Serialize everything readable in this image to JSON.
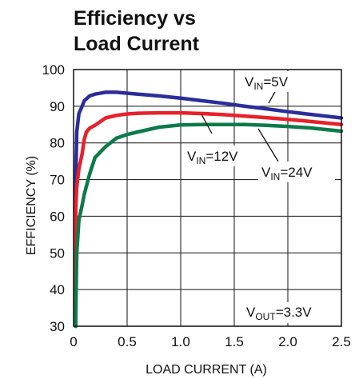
{
  "chart_data": {
    "type": "line",
    "title_lines": [
      "Efficiency vs",
      "Load Current"
    ],
    "xlabel": "LOAD CURRENT (A)",
    "ylabel": "EFFICIENCY (%)",
    "xlim": [
      0,
      2.5
    ],
    "ylim": [
      30,
      100
    ],
    "x_ticks": [
      "0",
      "0.5",
      "1.0",
      "1.5",
      "2.0",
      "2.5"
    ],
    "y_ticks": [
      "30",
      "40",
      "50",
      "60",
      "70",
      "80",
      "90",
      "100"
    ],
    "grid": true,
    "series": [
      {
        "color": "#2b2d9a",
        "x": [
          0.02,
          0.03,
          0.05,
          0.08,
          0.1,
          0.15,
          0.2,
          0.3,
          0.4,
          0.6,
          0.8,
          1.0,
          1.2,
          1.4,
          1.6,
          1.8,
          2.0,
          2.2,
          2.5
        ],
        "y": [
          70,
          83,
          88,
          90,
          91.5,
          92.8,
          93.3,
          93.8,
          93.8,
          93.3,
          92.8,
          92.2,
          91.5,
          90.8,
          90,
          89.3,
          88.5,
          87.8,
          86.8
        ]
      },
      {
        "color": "#e8202a",
        "x": [
          0.02,
          0.03,
          0.05,
          0.08,
          0.1,
          0.12,
          0.15,
          0.2,
          0.3,
          0.4,
          0.5,
          0.6,
          0.8,
          1.0,
          1.2,
          1.4,
          1.6,
          1.8,
          2.0,
          2.2,
          2.5
        ],
        "y": [
          62,
          68,
          73,
          77,
          81,
          83,
          84,
          84.8,
          86.8,
          87.5,
          87.9,
          88.1,
          88.2,
          88.2,
          88,
          87.7,
          87.3,
          86.9,
          86.4,
          85.9,
          85
        ]
      },
      {
        "color": "#0d7a4a",
        "x": [
          0.02,
          0.03,
          0.05,
          0.08,
          0.1,
          0.15,
          0.2,
          0.3,
          0.4,
          0.5,
          0.6,
          0.8,
          1.0,
          1.2,
          1.4,
          1.6,
          1.8,
          2.0,
          2.2,
          2.5
        ],
        "y": [
          32,
          50,
          59,
          63,
          66,
          71.5,
          76,
          79,
          81.3,
          82.3,
          83,
          84.3,
          84.9,
          85,
          85,
          85,
          84.8,
          84.5,
          84.1,
          83.2
        ]
      }
    ],
    "annotations": [
      {
        "main": "V",
        "sub": "IN",
        "rest": "=5V"
      },
      {
        "main": "V",
        "sub": "IN",
        "rest": "=12V"
      },
      {
        "main": "V",
        "sub": "IN",
        "rest": "=24V"
      },
      {
        "main": "V",
        "sub": "OUT",
        "rest": "=3.3V"
      }
    ]
  }
}
